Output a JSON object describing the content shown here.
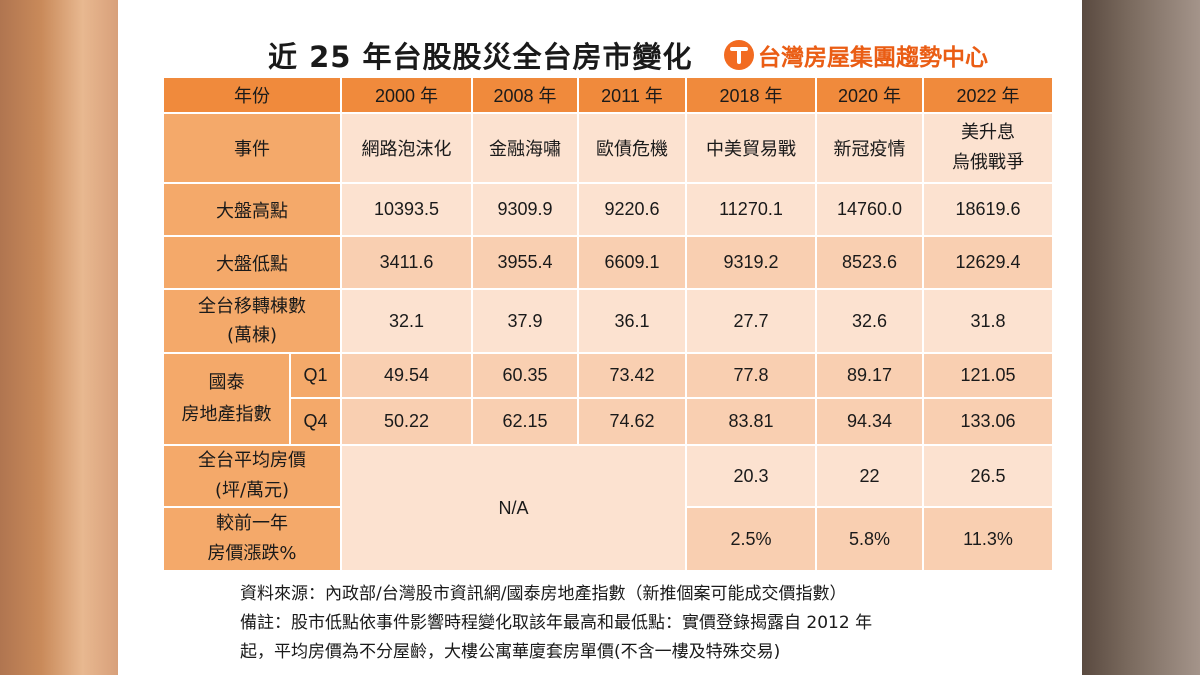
{
  "title": "近 25 年台股股災全台房市變化",
  "brand": "台灣房屋集團趨勢中心",
  "table": {
    "header_label": "年份",
    "years": [
      "2000 年",
      "2008 年",
      "2011 年",
      "2018 年",
      "2020 年",
      "2022 年"
    ],
    "event_label": "事件",
    "events": [
      "網路泡沫化",
      "金融海嘯",
      "歐債危機",
      "中美貿易戰",
      "新冠疫情",
      "美升息\n烏俄戰爭"
    ],
    "high_label": "大盤高點",
    "highs": [
      "10393.5",
      "9309.9",
      "9220.6",
      "11270.1",
      "14760.0",
      "18619.6"
    ],
    "low_label": "大盤低點",
    "lows": [
      "3411.6",
      "3955.4",
      "6609.1",
      "9319.2",
      "8523.6",
      "12629.4"
    ],
    "transfer_label": "全台移轉棟數\n(萬棟)",
    "transfers": [
      "32.1",
      "37.9",
      "36.1",
      "27.7",
      "32.6",
      "31.8"
    ],
    "index_label": "國泰\n房地產指數",
    "q1_label": "Q1",
    "q1": [
      "49.54",
      "60.35",
      "73.42",
      "77.8",
      "89.17",
      "121.05"
    ],
    "q4_label": "Q4",
    "q4": [
      "50.22",
      "62.15",
      "74.62",
      "83.81",
      "94.34",
      "133.06"
    ],
    "avg_price_label": "全台平均房價\n(坪/萬元)",
    "avg_prices": [
      "20.3",
      "22",
      "26.5"
    ],
    "change_label": "較前一年\n房價漲跌%",
    "changes": [
      "2.5%",
      "5.8%",
      "11.3%"
    ],
    "na": "N/A"
  },
  "notes": {
    "source": "資料來源：內政部/台灣股市資訊網/國泰房地產指數（新推個案可能成交價指數）",
    "remark_line1": "備註：股市低點依事件影響時程變化取該年最高和最低點：實價登錄揭露自 2012 年",
    "remark_line2": "起，平均房價為不分屋齡，大樓公寓華廈套房單價(不含一樓及特殊交易)"
  },
  "colors": {
    "header": "#f08a3c",
    "label": "#f4a96a",
    "cell_light": "#fce2d0",
    "cell_mid": "#f9cfb1",
    "brand": "#ea5d14"
  }
}
